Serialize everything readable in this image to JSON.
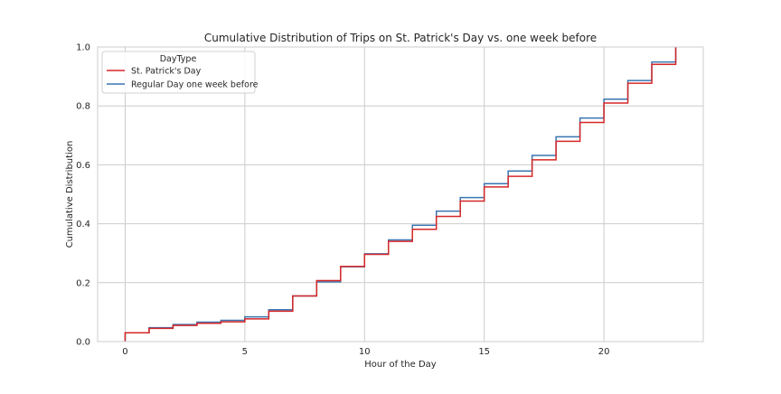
{
  "chart_data": {
    "type": "line",
    "step": "post",
    "title": "Cumulative Distribution of Trips on St. Patrick's Day vs. one week before",
    "xlabel": "Hour of the Day",
    "ylabel": "Cumulative Distribution",
    "xlim": [
      -1.15,
      24.15
    ],
    "ylim": [
      0.0,
      1.0
    ],
    "x_ticks": [
      0,
      5,
      10,
      15,
      20
    ],
    "x_tick_labels": [
      "0",
      "5",
      "10",
      "15",
      "20"
    ],
    "y_ticks": [
      0.0,
      0.2,
      0.4,
      0.6,
      0.8,
      1.0
    ],
    "y_tick_labels": [
      "0.0",
      "0.2",
      "0.4",
      "0.6",
      "0.8",
      "1.0"
    ],
    "grid": true,
    "legend": {
      "title": "DayType",
      "placement": "top-left"
    },
    "x": [
      0,
      1,
      2,
      3,
      4,
      5,
      6,
      7,
      8,
      9,
      10,
      11,
      12,
      13,
      14,
      15,
      16,
      17,
      18,
      19,
      20,
      21,
      22,
      23
    ],
    "series": [
      {
        "name": "Regular Day one week before",
        "color": "#3a75b0",
        "values": [
          0.03,
          0.047,
          0.058,
          0.066,
          0.072,
          0.084,
          0.108,
          0.155,
          0.203,
          0.254,
          0.298,
          0.345,
          0.395,
          0.443,
          0.489,
          0.536,
          0.579,
          0.632,
          0.695,
          0.759,
          0.823,
          0.886,
          0.949,
          1.0
        ]
      },
      {
        "name": "St. Patrick's Day",
        "color": "#d62728",
        "values": [
          0.03,
          0.045,
          0.055,
          0.062,
          0.067,
          0.077,
          0.103,
          0.155,
          0.207,
          0.255,
          0.296,
          0.34,
          0.381,
          0.425,
          0.477,
          0.525,
          0.561,
          0.617,
          0.68,
          0.744,
          0.81,
          0.877,
          0.941,
          1.0
        ]
      }
    ]
  }
}
